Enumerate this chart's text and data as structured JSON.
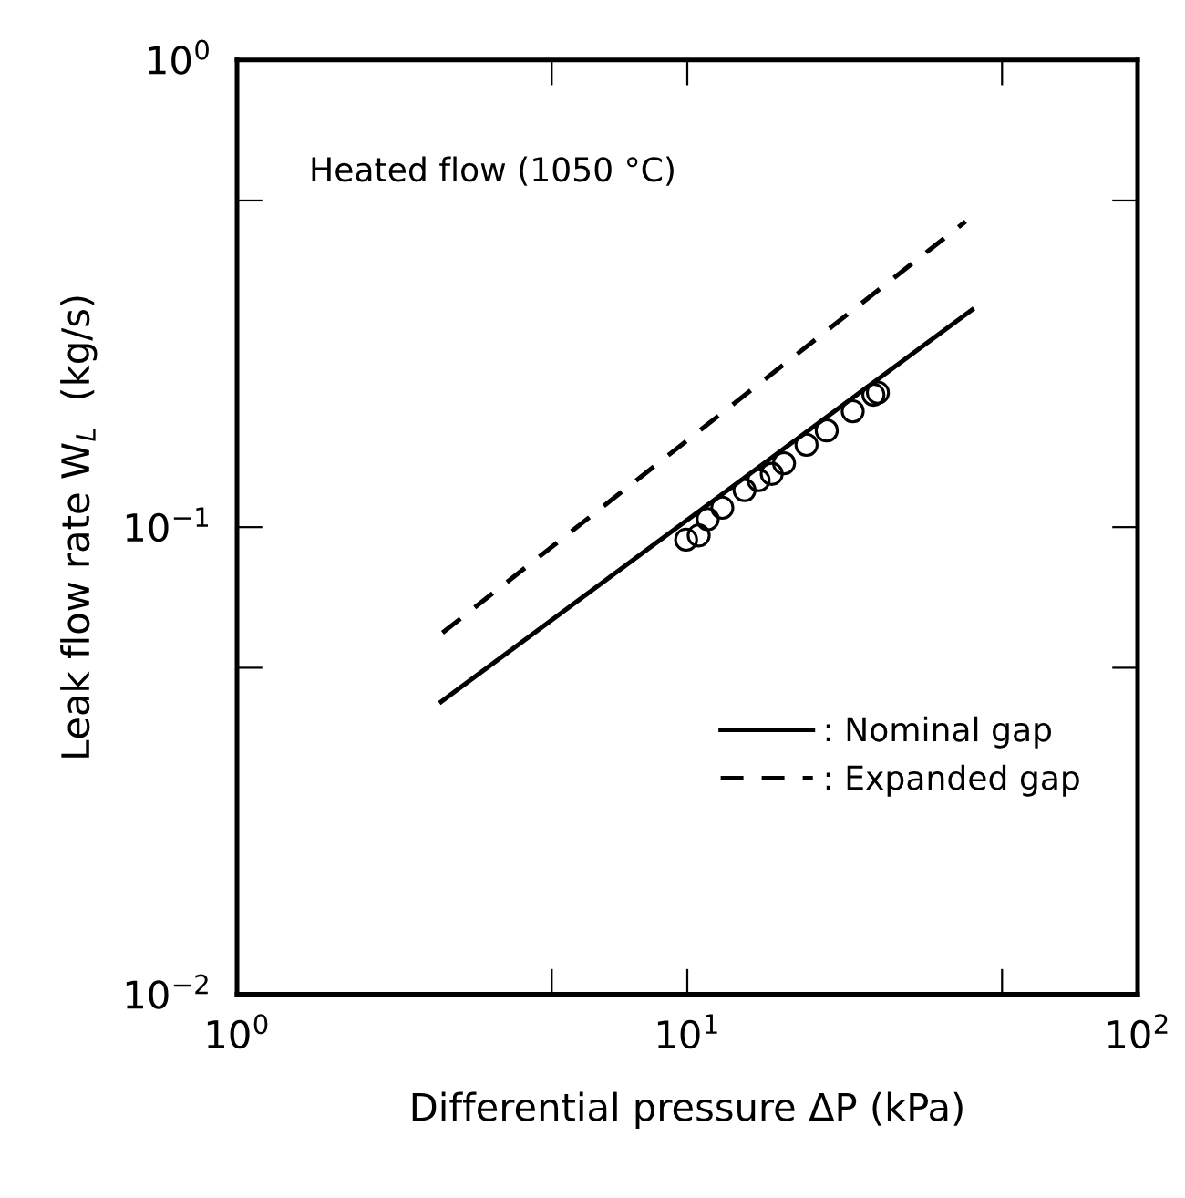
{
  "chart_data": {
    "type": "line",
    "xlabel": "Differential pressure ΔP (kPa)",
    "ylabel": "Leak flow rate W$_{L}$  (kg/s)",
    "log": "xy",
    "grid": false,
    "legend": "lower right",
    "xlim": [
      1,
      100
    ],
    "ylim": [
      0.01,
      1
    ],
    "xticks": [
      {
        "value": 1,
        "label": "10$^{0}$"
      },
      {
        "value": 5,
        "label": null
      },
      {
        "value": 10,
        "label": "10$^{1}$"
      },
      {
        "value": 50,
        "label": null
      },
      {
        "value": 100,
        "label": "10$^{2}$"
      }
    ],
    "yticks": [
      {
        "value": 0.01,
        "label": "10$^{−2}$"
      },
      {
        "value": 0.05,
        "label": null
      },
      {
        "value": 0.1,
        "label": "10$^{−1}$"
      },
      {
        "value": 0.5,
        "label": null
      },
      {
        "value": 1,
        "label": "10$^{0}$"
      }
    ],
    "annotations": [
      "Heated flow (1050 °C)"
    ],
    "series": [
      {
        "name": ": Nominal gap",
        "color": "#000000",
        "line_style": "solid",
        "marker": "none",
        "x": [
          2.84,
          42.9
        ],
        "values": [
          0.0423,
          0.292
        ]
      },
      {
        "name": ": Expanded gap",
        "color": "#000000",
        "line_style": "dashed",
        "marker": "none",
        "x": [
          2.86,
          41.5
        ],
        "values": [
          0.0594,
          0.451
        ]
      },
      {
        "type": "scatter",
        "color": "#000000",
        "marker": "circle",
        "x": [
          9.94,
          10.6,
          11.1,
          11.96,
          13.4,
          14.4,
          15.4,
          16.4,
          18.4,
          20.4,
          23.3,
          25.9,
          26.5
        ],
        "values": [
          0.094,
          0.096,
          0.104,
          0.11,
          0.12,
          0.126,
          0.13,
          0.137,
          0.15,
          0.161,
          0.177,
          0.192,
          0.194
        ]
      }
    ]
  }
}
